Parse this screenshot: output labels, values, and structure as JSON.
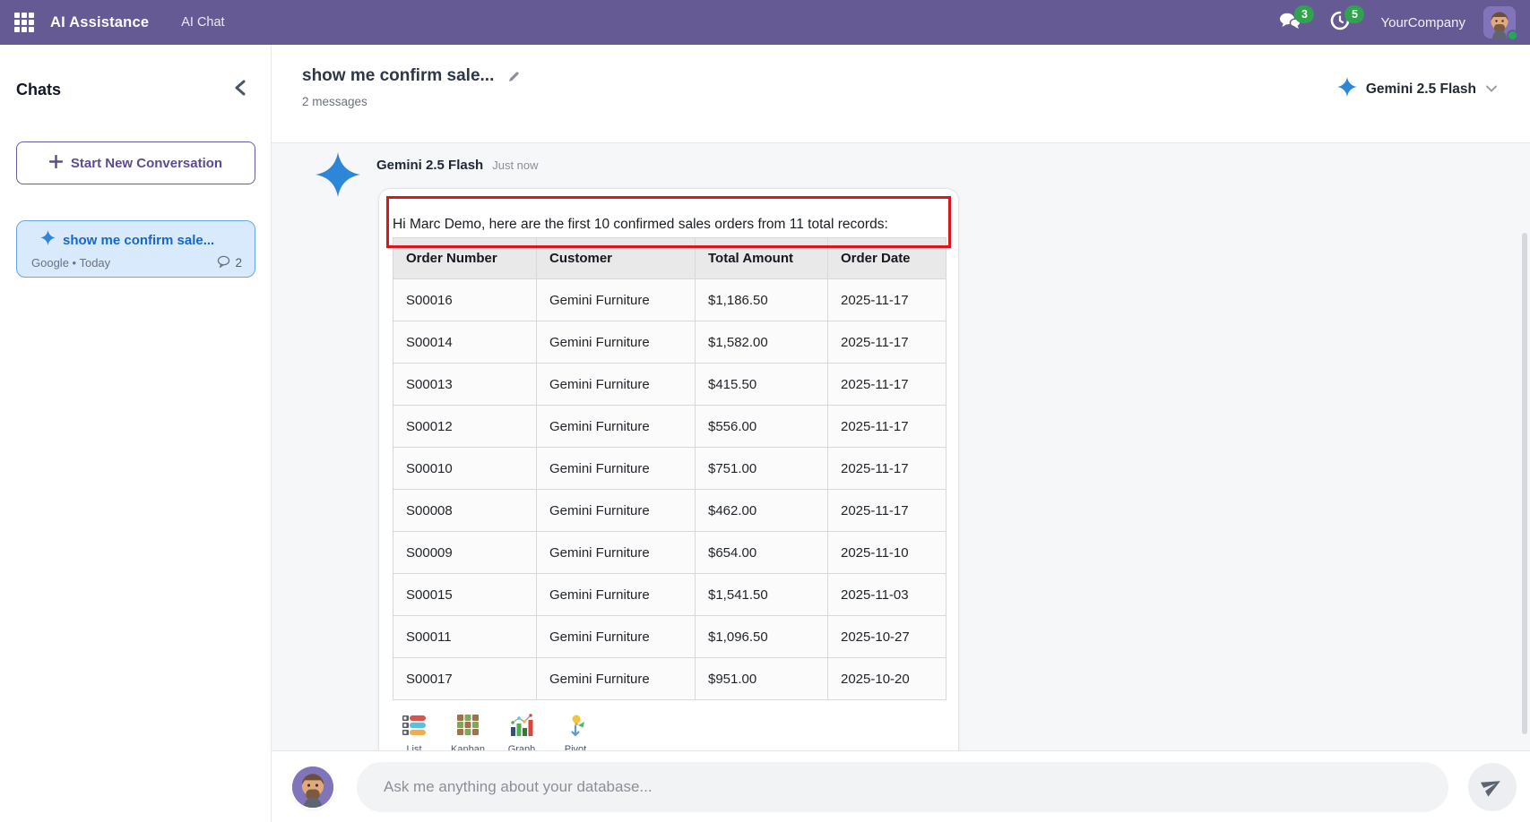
{
  "topbar": {
    "app_name": "AI Assistance",
    "menu_item": "AI Chat",
    "company": "YourCompany",
    "messages_badge": "3",
    "activities_badge": "5"
  },
  "sidebar": {
    "title": "Chats",
    "new_conversation_label": "Start New Conversation",
    "chats": [
      {
        "title": "show me confirm sale...",
        "meta": "Google • Today",
        "message_count": "2"
      }
    ]
  },
  "header": {
    "title": "show me confirm sale...",
    "subtitle": "2 messages",
    "model_name": "Gemini 2.5 Flash"
  },
  "conversation": {
    "message": {
      "author": "Gemini 2.5 Flash",
      "time": "Just now",
      "greeting": "Hi Marc Demo, here are the first 10 confirmed sales orders from 11 total records:",
      "table": {
        "headers": [
          "Order Number",
          "Customer",
          "Total Amount",
          "Order Date"
        ],
        "rows": [
          [
            "S00016",
            "Gemini Furniture",
            "$1,186.50",
            "2025-11-17"
          ],
          [
            "S00014",
            "Gemini Furniture",
            "$1,582.00",
            "2025-11-17"
          ],
          [
            "S00013",
            "Gemini Furniture",
            "$415.50",
            "2025-11-17"
          ],
          [
            "S00012",
            "Gemini Furniture",
            "$556.00",
            "2025-11-17"
          ],
          [
            "S00010",
            "Gemini Furniture",
            "$751.00",
            "2025-11-17"
          ],
          [
            "S00008",
            "Gemini Furniture",
            "$462.00",
            "2025-11-17"
          ],
          [
            "S00009",
            "Gemini Furniture",
            "$654.00",
            "2025-11-10"
          ],
          [
            "S00015",
            "Gemini Furniture",
            "$1,541.50",
            "2025-11-03"
          ],
          [
            "S00011",
            "Gemini Furniture",
            "$1,096.50",
            "2025-10-27"
          ],
          [
            "S00017",
            "Gemini Furniture",
            "$951.00",
            "2025-10-20"
          ]
        ]
      },
      "view_buttons": [
        {
          "label": "List"
        },
        {
          "label": "Kanban"
        },
        {
          "label": "Graph"
        },
        {
          "label": "Pivot"
        }
      ]
    }
  },
  "composer": {
    "placeholder": "Ask me anything about your database..."
  },
  "icons": {
    "apps_grid": "grid-icon",
    "messages": "chat-bubbles-icon",
    "activities": "clock-icon",
    "collapse": "chevron-left-icon",
    "new_conversation": "plus-icon",
    "edit_title": "pencil-icon",
    "model": "sparkle-icon",
    "model_dropdown": "chevron-down-icon",
    "send": "paper-plane-icon"
  },
  "colors": {
    "topbar": "#665a94",
    "badge": "#31a24f",
    "sparkle": "#2e86d6",
    "annotation": "#e0151b",
    "chatsel": "#d8eafc"
  }
}
